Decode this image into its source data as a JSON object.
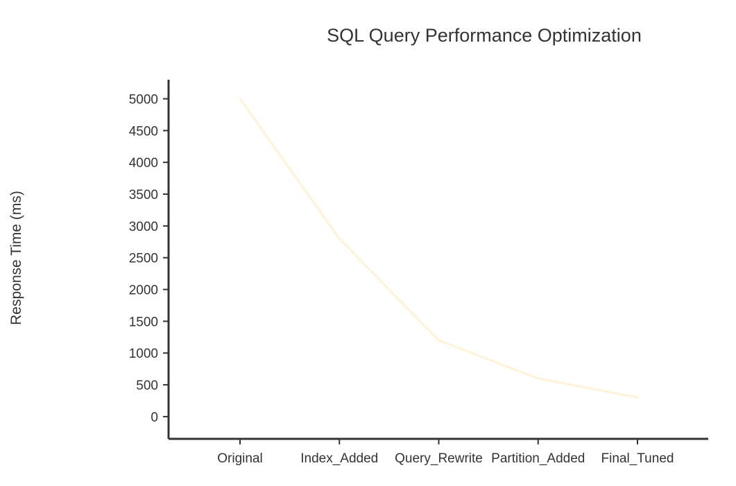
{
  "chart_data": {
    "type": "line",
    "title": "SQL Query Performance Optimization",
    "xlabel": "",
    "ylabel": "Response Time (ms)",
    "categories": [
      "Original",
      "Index_Added",
      "Query_Rewrite",
      "Partition_Added",
      "Final_Tuned"
    ],
    "series": [
      {
        "values": [
          5000,
          2800,
          1200,
          600,
          300
        ],
        "color": "#fff2d6"
      }
    ],
    "yticks": [
      0,
      500,
      1000,
      1500,
      2000,
      2500,
      3000,
      3500,
      4000,
      4500,
      5000
    ],
    "ylim": [
      -350,
      5300
    ],
    "grid": false,
    "legend": "none"
  }
}
